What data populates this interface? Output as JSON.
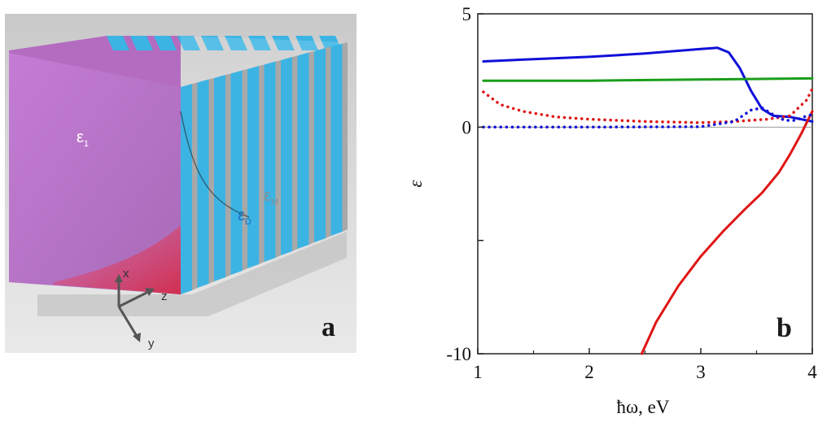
{
  "panel_a": {
    "letter": "a",
    "layer_labels": {
      "eps_1": "ε",
      "eps_1_sub": "1",
      "eps_D": "ε",
      "eps_D_sub": "D",
      "eps_M": "ε",
      "eps_M_sub": "M"
    },
    "axes": {
      "x": "x",
      "y": "y",
      "z": "z"
    },
    "colors": {
      "crystal": "#c57fd3",
      "dielectric_stripe": "#3bb4e4",
      "metal_stripe": "#a8a8a8",
      "beam": "#d21e3a"
    }
  },
  "chart_data": {
    "type": "line",
    "letter": "b",
    "xlabel": "ħω, eV",
    "ylabel": "ε",
    "xlim": [
      1,
      4
    ],
    "ylim": [
      -10,
      5
    ],
    "x_ticks": [
      "1",
      "2",
      "3",
      "4"
    ],
    "y_ticks": [
      "5",
      "0",
      "-10"
    ],
    "x_tick_values": [
      1,
      2,
      3,
      4
    ],
    "y_tick_values": [
      5,
      0,
      -10
    ],
    "zero_line": true,
    "series": [
      {
        "color": "#1010d8",
        "style": "solid",
        "x": [
          1.05,
          1.5,
          2.0,
          2.5,
          3.0,
          3.15,
          3.25,
          3.35,
          3.45,
          3.55,
          3.65,
          3.8,
          3.95,
          4.0
        ],
        "y": [
          2.9,
          3.0,
          3.1,
          3.25,
          3.45,
          3.5,
          3.3,
          2.6,
          1.6,
          0.8,
          0.5,
          0.45,
          0.3,
          0.25
        ]
      },
      {
        "color": "#1a9e1a",
        "style": "solid",
        "x": [
          1.05,
          2.0,
          3.0,
          4.0
        ],
        "y": [
          2.05,
          2.05,
          2.1,
          2.15
        ]
      },
      {
        "color": "#e01515",
        "style": "solid",
        "x": [
          2.47,
          2.6,
          2.8,
          3.0,
          3.2,
          3.4,
          3.55,
          3.7,
          3.8,
          3.9,
          4.0
        ],
        "y": [
          -10.0,
          -8.6,
          -7.0,
          -5.7,
          -4.6,
          -3.6,
          -2.9,
          -2.0,
          -1.2,
          -0.3,
          0.7
        ]
      },
      {
        "color": "#e01515",
        "style": "dotted",
        "x": [
          1.05,
          1.2,
          1.4,
          1.7,
          2.0,
          2.5,
          3.0,
          3.3,
          3.6,
          3.8,
          3.95,
          4.0
        ],
        "y": [
          1.55,
          1.0,
          0.7,
          0.45,
          0.35,
          0.25,
          0.2,
          0.25,
          0.35,
          0.5,
          1.2,
          1.7
        ]
      },
      {
        "color": "#1010d8",
        "style": "dotted",
        "x": [
          1.05,
          2.0,
          3.0,
          3.3,
          3.45,
          3.55,
          3.65,
          3.75,
          3.85,
          3.95,
          4.0
        ],
        "y": [
          0.0,
          0.0,
          0.02,
          0.25,
          0.75,
          0.85,
          0.55,
          0.3,
          0.3,
          0.5,
          0.55
        ]
      }
    ]
  }
}
